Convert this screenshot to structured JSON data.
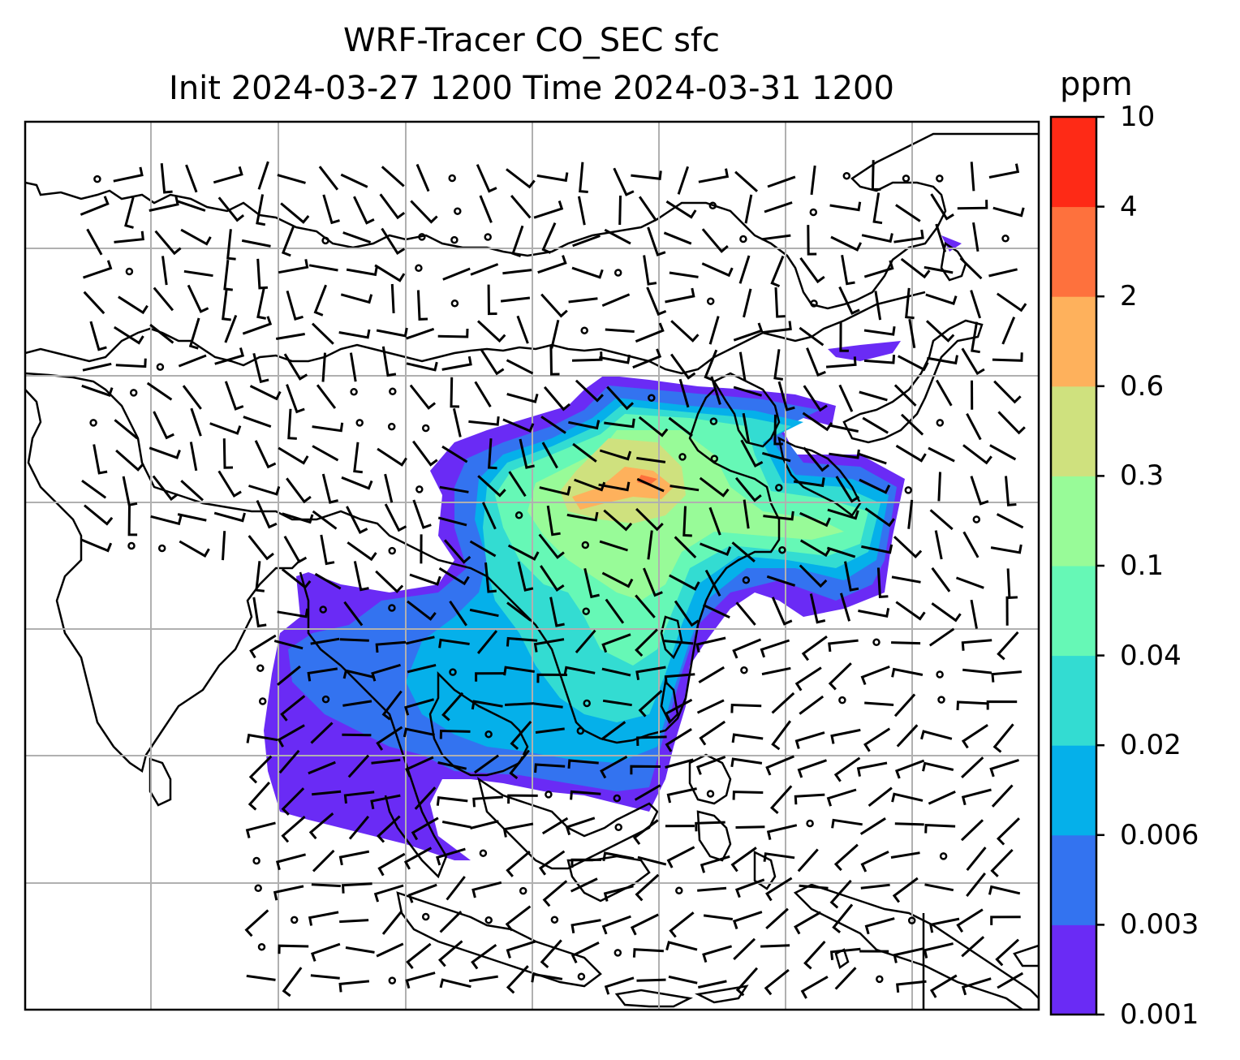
{
  "title": {
    "line1": "WRF-Tracer CO_SEC sfc",
    "line2": "Init 2024-03-27 1200 Time 2024-03-31 1200"
  },
  "colorbar": {
    "unit": "ppm",
    "levels": [
      "0.001",
      "0.003",
      "0.006",
      "0.02",
      "0.04",
      "0.1",
      "0.3",
      "0.6",
      "2",
      "4",
      "10"
    ],
    "colors": [
      "#6a2bf5",
      "#3373f0",
      "#05b0ea",
      "#33dcd2",
      "#66f8b6",
      "#98fb98",
      "#cfe17e",
      "#feb15c",
      "#fe713d",
      "#fe2a16"
    ]
  },
  "map": {
    "field": "CO_SEC surface concentration",
    "graticule": "on",
    "wind_barbs": "on",
    "coastlines": "on"
  }
}
